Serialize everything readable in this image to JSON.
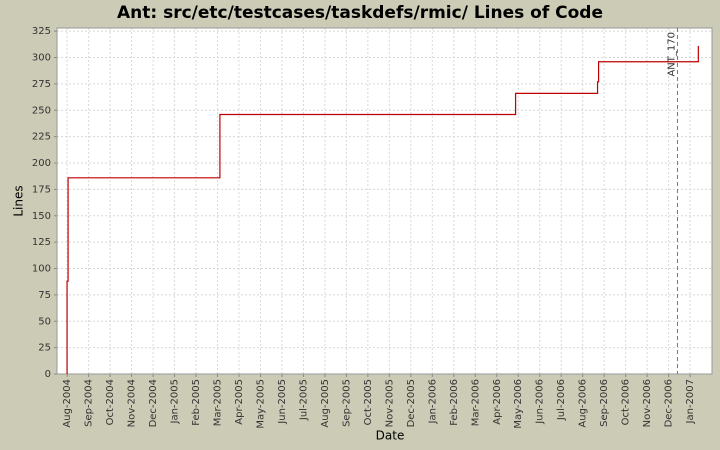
{
  "chart_data": {
    "type": "line",
    "title": "Ant: src/etc/testcases/taskdefs/rmic/ Lines of Code",
    "x_label": "Date",
    "y_label": "Lines",
    "series": [
      {
        "name": "Lines",
        "color": "#c00000",
        "x": [
          2004.583,
          2004.583,
          2004.587,
          2004.587,
          2005.176,
          2005.176,
          2006.323,
          2006.323,
          2006.641,
          2006.641,
          2006.645,
          2006.645,
          2007.032,
          2007.032
        ],
        "values": [
          0,
          88,
          88,
          186,
          186,
          246,
          246,
          266,
          266,
          277,
          277,
          296,
          296,
          311
        ]
      }
    ],
    "markers": [
      {
        "label": "ANT_170",
        "x": 2006.951
      }
    ],
    "xlim": [
      2004.544,
      2007.085
    ],
    "ylim": [
      0,
      328
    ],
    "yticks": [
      0,
      25,
      50,
      75,
      100,
      125,
      150,
      175,
      200,
      225,
      250,
      275,
      300,
      325
    ],
    "xticks": [
      {
        "value": 2004.5833,
        "label": "Aug-2004"
      },
      {
        "value": 2004.6667,
        "label": "Sep-2004"
      },
      {
        "value": 2004.75,
        "label": "Oct-2004"
      },
      {
        "value": 2004.8333,
        "label": "Nov-2004"
      },
      {
        "value": 2004.9167,
        "label": "Dec-2004"
      },
      {
        "value": 2005.0,
        "label": "Jan-2005"
      },
      {
        "value": 2005.0833,
        "label": "Feb-2005"
      },
      {
        "value": 2005.1667,
        "label": "Mar-2005"
      },
      {
        "value": 2005.25,
        "label": "Apr-2005"
      },
      {
        "value": 2005.3333,
        "label": "May-2005"
      },
      {
        "value": 2005.4167,
        "label": "Jun-2005"
      },
      {
        "value": 2005.5,
        "label": "Jul-2005"
      },
      {
        "value": 2005.5833,
        "label": "Aug-2005"
      },
      {
        "value": 2005.6667,
        "label": "Sep-2005"
      },
      {
        "value": 2005.75,
        "label": "Oct-2005"
      },
      {
        "value": 2005.8333,
        "label": "Nov-2005"
      },
      {
        "value": 2005.9167,
        "label": "Dec-2005"
      },
      {
        "value": 2006.0,
        "label": "Jan-2006"
      },
      {
        "value": 2006.0833,
        "label": "Feb-2006"
      },
      {
        "value": 2006.1667,
        "label": "Mar-2006"
      },
      {
        "value": 2006.25,
        "label": "Apr-2006"
      },
      {
        "value": 2006.3333,
        "label": "May-2006"
      },
      {
        "value": 2006.4167,
        "label": "Jun-2006"
      },
      {
        "value": 2006.5,
        "label": "Jul-2006"
      },
      {
        "value": 2006.5833,
        "label": "Aug-2006"
      },
      {
        "value": 2006.6667,
        "label": "Sep-2006"
      },
      {
        "value": 2006.75,
        "label": "Oct-2006"
      },
      {
        "value": 2006.8333,
        "label": "Nov-2006"
      },
      {
        "value": 2006.9167,
        "label": "Dec-2006"
      },
      {
        "value": 2007.0,
        "label": "Jan-2007"
      }
    ],
    "grid": true
  }
}
